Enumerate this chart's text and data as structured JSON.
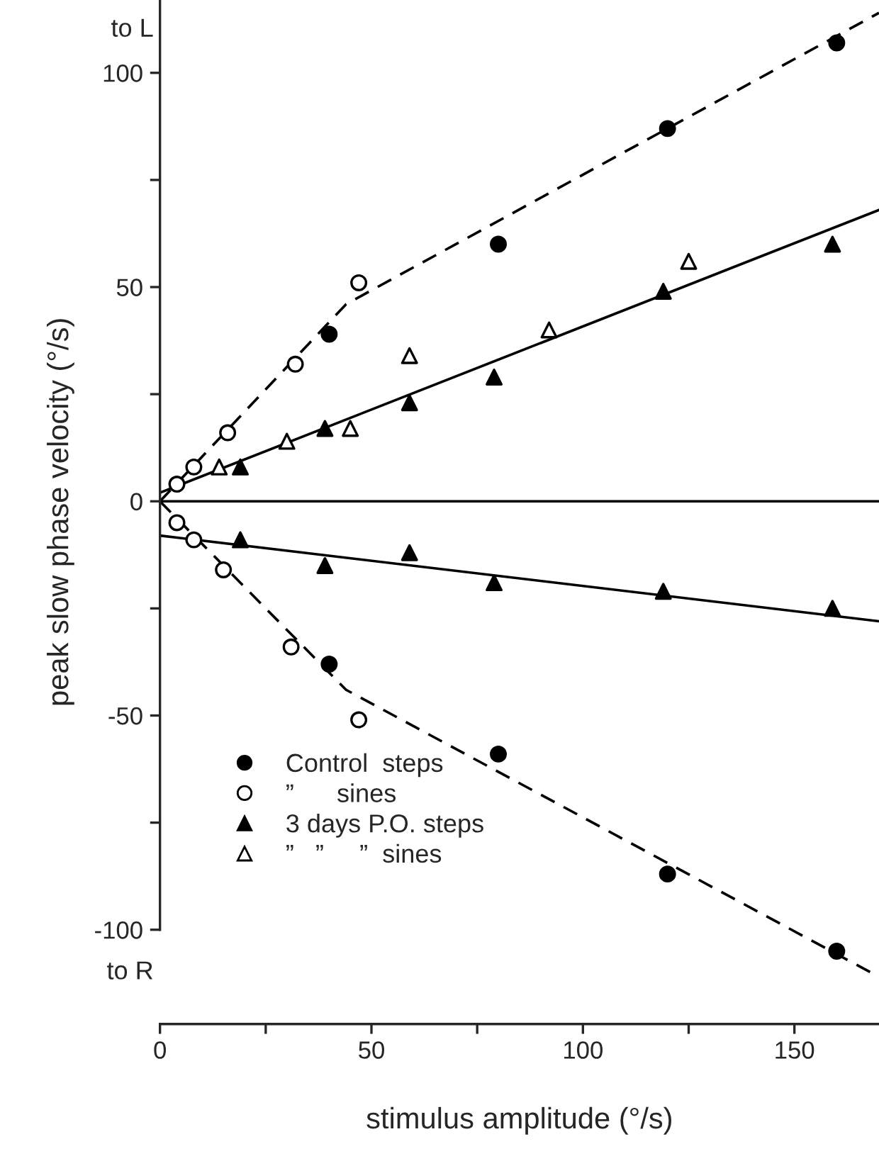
{
  "chart_data": {
    "type": "scatter",
    "xlabel": "stimulus amplitude (°/s)",
    "ylabel": "peak slow phase velocity (°/s)",
    "annotations": [
      "to L",
      "to R"
    ],
    "xlim": [
      0,
      170
    ],
    "xticks": [
      0,
      {
        "value": 25,
        "label": null
      },
      50,
      {
        "value": 75,
        "label": null
      },
      100,
      {
        "value": 125,
        "label": null
      },
      150
    ],
    "ylim": [
      -122,
      117
    ],
    "yticks": [
      -100,
      {
        "value": -75,
        "label": null
      },
      -50,
      {
        "value": -25,
        "label": null
      },
      0,
      {
        "value": 25,
        "label": null
      },
      50,
      {
        "value": 75,
        "label": null
      },
      100
    ],
    "ref_lines": [
      {
        "axis": "y",
        "value": 0,
        "color": "#000000",
        "line_style": "solid"
      }
    ],
    "grid": false,
    "legend": "bottom left",
    "series": [
      {
        "name": "Control  steps",
        "color": "#000000",
        "marker": "circle",
        "x": [
          40,
          80,
          120,
          160,
          40,
          80,
          120,
          160
        ],
        "values": [
          39,
          60,
          87,
          107,
          -38,
          -59,
          -87,
          -105
        ]
      },
      {
        "name": "”      sines",
        "color": "#ffffff",
        "marker": "circle",
        "x": [
          4,
          8,
          16,
          32,
          47,
          4,
          8,
          15,
          31,
          47
        ],
        "values": [
          4,
          8,
          16,
          32,
          51,
          -5,
          -9,
          -16,
          -34,
          -51
        ]
      },
      {
        "name": "3 days P.O. steps",
        "color": "#000000",
        "marker": "triangle",
        "x": [
          19,
          39,
          59,
          79,
          119,
          159,
          19,
          39,
          59,
          79,
          119,
          159
        ],
        "values": [
          8,
          17,
          23,
          29,
          49,
          60,
          -9,
          -15,
          -12,
          -19,
          -21,
          -25
        ]
      },
      {
        "name": "”   ”     ”  sines",
        "color": "#ffffff",
        "marker": "triangle",
        "x": [
          14,
          30,
          45,
          59,
          92,
          125
        ],
        "values": [
          8,
          14,
          17,
          34,
          40,
          56
        ]
      },
      {
        "type": "line",
        "color": "#000000",
        "line_style": "dashed",
        "marker": "none",
        "x": [
          0,
          44,
          170
        ],
        "values": [
          0,
          46,
          114
        ]
      },
      {
        "type": "line",
        "color": "#000000",
        "line_style": "dashed",
        "marker": "none",
        "x": [
          0,
          44,
          170
        ],
        "values": [
          0,
          -44,
          -111
        ]
      },
      {
        "type": "line",
        "color": "#000000",
        "line_style": "solid",
        "marker": "none",
        "x": [
          0,
          170
        ],
        "values": [
          2,
          68
        ]
      },
      {
        "type": "line",
        "color": "#000000",
        "line_style": "solid",
        "marker": "none",
        "x": [
          0,
          170
        ],
        "values": [
          -8,
          -28
        ]
      }
    ]
  }
}
